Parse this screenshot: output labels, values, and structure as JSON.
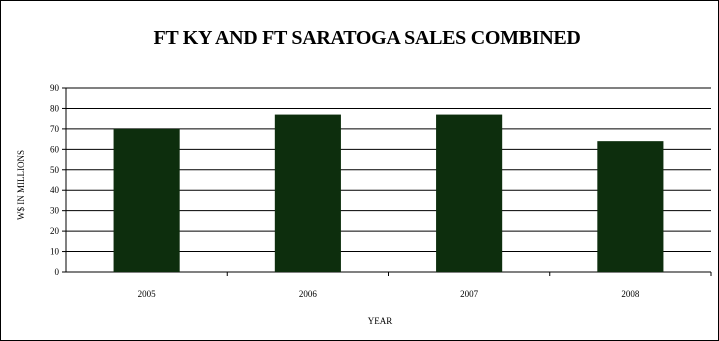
{
  "chart_data": {
    "type": "bar",
    "title": "FT KY AND FT SARATOGA SALES COMBINED",
    "xlabel": "YEAR",
    "ylabel": "W$ IN MILLIONS",
    "categories": [
      "2005",
      "2006",
      "2007",
      "2008"
    ],
    "values": [
      70,
      77,
      77,
      64
    ],
    "ylim": [
      0,
      90
    ],
    "yticks": [
      0,
      10,
      20,
      30,
      40,
      50,
      60,
      70,
      80,
      90
    ],
    "grid": true,
    "legend": "none",
    "bar_color": "#0d2e0d"
  }
}
